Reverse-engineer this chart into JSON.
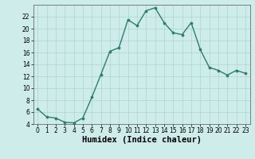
{
  "x": [
    0,
    1,
    2,
    3,
    4,
    5,
    6,
    7,
    8,
    9,
    10,
    11,
    12,
    13,
    14,
    15,
    16,
    17,
    18,
    19,
    20,
    21,
    22,
    23
  ],
  "y": [
    6.5,
    5.2,
    5.0,
    4.3,
    4.2,
    5.0,
    8.5,
    12.3,
    16.2,
    16.8,
    21.5,
    20.5,
    23.0,
    23.5,
    21.0,
    19.3,
    19.0,
    21.0,
    16.5,
    13.5,
    13.0,
    12.2,
    13.0,
    12.5
  ],
  "line_color": "#2d7d6e",
  "bg_color": "#ceecea",
  "grid_color": "#aed4d0",
  "xlabel": "Humidex (Indice chaleur)",
  "ylim": [
    4,
    24
  ],
  "xlim": [
    -0.5,
    23.5
  ],
  "yticks": [
    4,
    6,
    8,
    10,
    12,
    14,
    16,
    18,
    20,
    22
  ],
  "xticks": [
    0,
    1,
    2,
    3,
    4,
    5,
    6,
    7,
    8,
    9,
    10,
    11,
    12,
    13,
    14,
    15,
    16,
    17,
    18,
    19,
    20,
    21,
    22,
    23
  ],
  "tick_fontsize": 5.5,
  "xlabel_fontsize": 7.5,
  "marker_size": 2.2,
  "line_width": 1.0
}
